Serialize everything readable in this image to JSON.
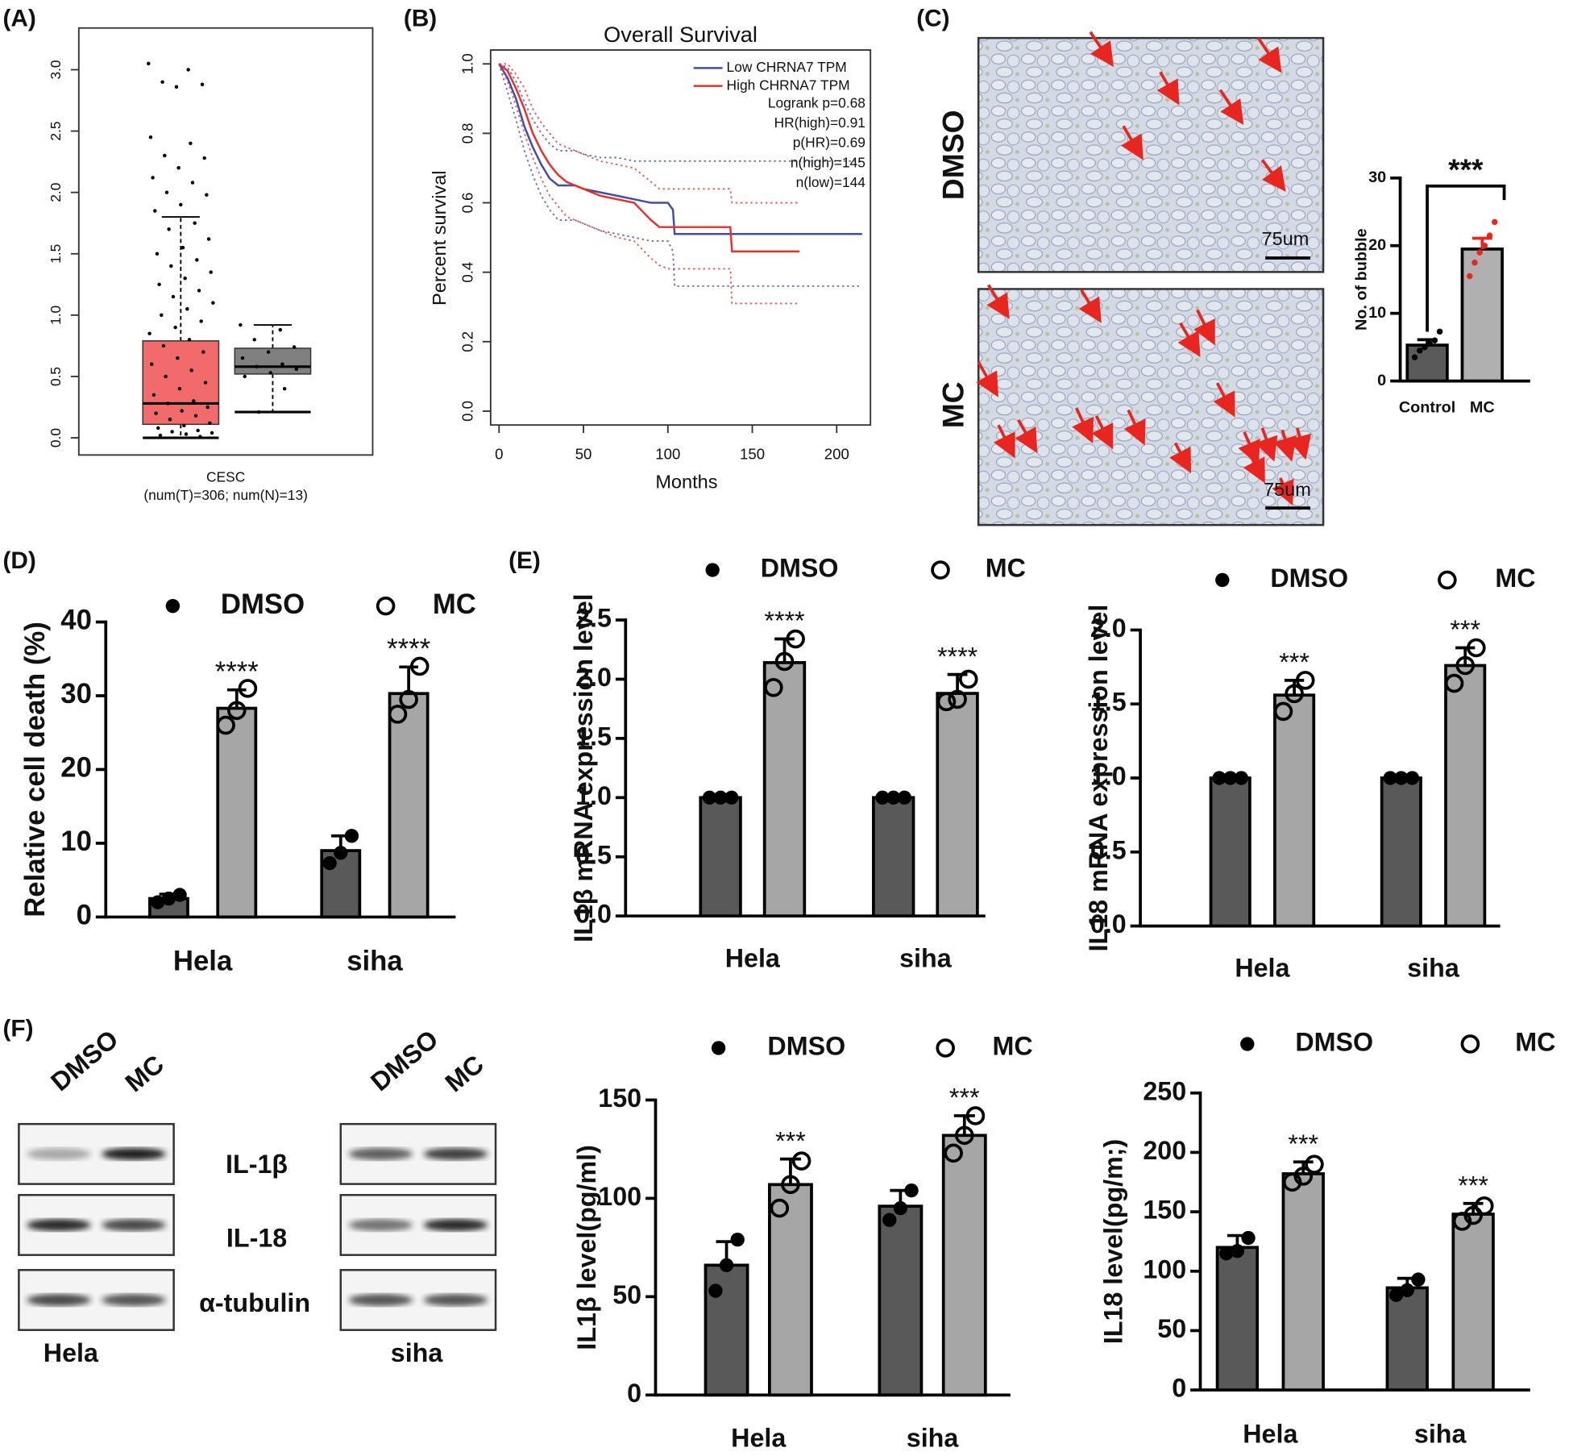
{
  "panels": [
    "(A)",
    "(B)",
    "(C)",
    "(D)",
    "(E)",
    "(F)"
  ],
  "micrographs": {
    "conditions": [
      "DMSO",
      "MC"
    ],
    "scale_bars": [
      "75um",
      "75um"
    ]
  },
  "blot": {
    "lanes": [
      "DMSO",
      "MC",
      "DMSO",
      "MC"
    ],
    "proteins": [
      "IL-1β",
      "IL-18",
      "α-tubulin"
    ],
    "cell_lines": [
      "Hela",
      "siha"
    ]
  },
  "chart_data": [
    {
      "type": "box",
      "categories": [
        "CESC"
      ],
      "category_note": "(num(T)=306; num(N)=13)",
      "ylim": [
        -0.14,
        3.34
      ],
      "yticks": [
        {
          "value": 0,
          "label": "0.0"
        },
        0.5,
        {
          "value": 1,
          "label": "1.0"
        },
        1.5,
        {
          "value": 2,
          "label": "2.0"
        },
        2.5,
        {
          "value": 3,
          "label": "3.0"
        }
      ],
      "boxes": [
        {
          "color": "#f26b6b",
          "min": 0,
          "q1": 0.11,
          "median": 0.28,
          "q3": 0.79,
          "max": 1.8,
          "points": [
            3.05,
            3.0,
            2.9,
            2.88,
            2.86,
            2.45,
            2.4,
            2.3,
            2.28,
            2.2,
            2.12,
            2.08,
            2.0,
            1.98,
            1.9,
            1.85,
            1.75,
            1.7,
            1.62,
            1.55,
            1.5,
            1.45,
            1.4,
            1.35,
            1.3,
            1.25,
            1.2,
            1.15,
            1.1,
            1.05,
            1.0,
            0.95,
            0.9,
            0.85,
            0.8,
            0.75,
            0.7,
            0.65,
            0.6,
            0.55,
            0.5,
            0.45,
            0.4,
            0.35,
            0.3,
            0.28,
            0.25,
            0.22,
            0.2,
            0.18,
            0.15,
            0.12,
            0.1,
            0.08,
            0.06,
            0.05,
            0.04,
            0.03,
            0.02,
            0.01
          ]
        },
        {
          "color": "#808080",
          "min": 0.21,
          "q1": 0.52,
          "median": 0.58,
          "q3": 0.73,
          "max": 0.92,
          "points": [
            0.92,
            0.88,
            0.8,
            0.74,
            0.7,
            0.65,
            0.6,
            0.58,
            0.56,
            0.53,
            0.5,
            0.4,
            0.21
          ]
        }
      ]
    },
    {
      "type": "line",
      "title": "Overall Survival",
      "xlabel": "Months",
      "ylabel": "Percent survival",
      "xlim": [
        -5,
        220
      ],
      "xticks": [
        0,
        50,
        100,
        150,
        200
      ],
      "ylim": [
        -0.04,
        1.04
      ],
      "yticks": [
        {
          "value": 0,
          "label": "0.0"
        },
        0.2,
        0.4,
        0.6,
        0.8,
        {
          "value": 1,
          "label": "1.0"
        }
      ],
      "stats": [
        "Logrank p=0.68",
        "HR(high)=0.91",
        "p(HR)=0.69",
        "n(high)=145",
        "n(low)=144"
      ],
      "series": [
        {
          "name": "Low CHRNA7 TPM",
          "color": "#3f4fa8",
          "x": [
            0,
            5,
            10,
            15,
            20,
            25,
            30,
            35,
            40,
            45,
            50,
            60,
            70,
            80,
            90,
            100,
            103,
            104,
            215
          ],
          "values": [
            1.0,
            0.96,
            0.9,
            0.82,
            0.76,
            0.71,
            0.67,
            0.65,
            0.65,
            0.65,
            0.64,
            0.63,
            0.62,
            0.61,
            0.6,
            0.6,
            0.58,
            0.51,
            0.51
          ],
          "upper": [
            1.0,
            0.99,
            0.95,
            0.89,
            0.84,
            0.8,
            0.77,
            0.75,
            0.75,
            0.75,
            0.74,
            0.73,
            0.73,
            0.72,
            0.72,
            0.72,
            0.72,
            0.72,
            0.72
          ],
          "lower": [
            1.0,
            0.92,
            0.84,
            0.75,
            0.68,
            0.62,
            0.58,
            0.55,
            0.55,
            0.55,
            0.54,
            0.52,
            0.51,
            0.5,
            0.49,
            0.49,
            0.46,
            0.36,
            0.36
          ]
        },
        {
          "name": "High CHRNA7 TPM",
          "color": "#e8312a",
          "x": [
            0,
            5,
            10,
            15,
            20,
            25,
            30,
            35,
            40,
            45,
            50,
            60,
            70,
            80,
            90,
            95,
            100,
            137,
            138,
            178
          ],
          "values": [
            1.0,
            0.98,
            0.93,
            0.87,
            0.8,
            0.75,
            0.71,
            0.68,
            0.66,
            0.65,
            0.64,
            0.62,
            0.61,
            0.6,
            0.55,
            0.53,
            0.53,
            0.53,
            0.46,
            0.46
          ],
          "upper": [
            1.0,
            1.0,
            0.97,
            0.93,
            0.87,
            0.83,
            0.8,
            0.77,
            0.76,
            0.75,
            0.74,
            0.72,
            0.71,
            0.7,
            0.66,
            0.64,
            0.64,
            0.64,
            0.6,
            0.6
          ],
          "lower": [
            1.0,
            0.95,
            0.88,
            0.8,
            0.73,
            0.67,
            0.62,
            0.59,
            0.56,
            0.55,
            0.54,
            0.52,
            0.5,
            0.49,
            0.44,
            0.42,
            0.41,
            0.41,
            0.31,
            0.31
          ]
        }
      ]
    },
    {
      "type": "bar",
      "ylabel": "No. of bubble",
      "categories": [
        "Control",
        "MC"
      ],
      "values": [
        5.3,
        19.5
      ],
      "errors": [
        0.8,
        1.6
      ],
      "colors": [
        "#5a5a5a",
        "#b0b0b0"
      ],
      "point_colors": [
        "#000000",
        "#e8261f"
      ],
      "points": [
        [
          3.5,
          4.5,
          5,
          5.5,
          6,
          7.3
        ],
        [
          15.5,
          17.5,
          19,
          20,
          21.5,
          23.5
        ]
      ],
      "ylim": [
        0,
        30
      ],
      "yticks": [
        0,
        10,
        20,
        30
      ],
      "significance": "***"
    },
    {
      "type": "bar",
      "ylabel": "Relative cell death (%)",
      "categories": [
        "Hela",
        "siha"
      ],
      "ylim": [
        0,
        40
      ],
      "yticks": [
        0,
        10,
        20,
        30,
        40
      ],
      "series": [
        {
          "name": "DMSO",
          "color": "#595959",
          "marker": "filled",
          "values": [
            2.5,
            9
          ],
          "errors": [
            0.6,
            2
          ],
          "points": [
            [
              2,
              2.5,
              3
            ],
            [
              7.3,
              8.7,
              11
            ]
          ]
        },
        {
          "name": "MC",
          "color": "#a6a6a6",
          "marker": "open",
          "values": [
            28.3,
            30.3
          ],
          "errors": [
            2.5,
            3.6
          ],
          "points": [
            [
              26,
              28,
              31
            ],
            [
              27.5,
              29.5,
              34
            ]
          ],
          "significance": [
            "****",
            "****"
          ]
        }
      ]
    },
    {
      "type": "bar",
      "ylabel": "IL1β mRNA expression level",
      "categories": [
        "Hela",
        "siha"
      ],
      "ylim": [
        0,
        2.5
      ],
      "yticks": [
        {
          "value": 0,
          "label": "0.0"
        },
        0.5,
        {
          "value": 1,
          "label": "1.0"
        },
        1.5,
        {
          "value": 2,
          "label": "2.0"
        },
        2.5
      ],
      "series": [
        {
          "name": "DMSO",
          "color": "#595959",
          "marker": "filled",
          "values": [
            1,
            1
          ],
          "errors": [
            0,
            0
          ],
          "points": [
            [
              1,
              1,
              1
            ],
            [
              1,
              1,
              1
            ]
          ]
        },
        {
          "name": "MC",
          "color": "#a6a6a6",
          "marker": "open",
          "values": [
            2.14,
            1.88
          ],
          "errors": [
            0.2,
            0.16
          ],
          "points": [
            [
              1.93,
              2.15,
              2.34
            ],
            [
              1.81,
              1.83,
              2.0
            ]
          ],
          "significance": [
            "****",
            "****"
          ]
        }
      ]
    },
    {
      "type": "bar",
      "ylabel": "IL18 mRNA expression level",
      "categories": [
        "Hela",
        "siha"
      ],
      "ylim": [
        0,
        2
      ],
      "yticks": [
        {
          "value": 0,
          "label": "0.0"
        },
        0.5,
        {
          "value": 1,
          "label": "1.0"
        },
        1.5,
        {
          "value": 2,
          "label": "2.0"
        }
      ],
      "series": [
        {
          "name": "DMSO",
          "color": "#595959",
          "marker": "filled",
          "values": [
            1,
            1
          ],
          "errors": [
            0,
            0
          ],
          "points": [
            [
              1,
              1,
              1
            ],
            [
              1,
              1,
              1
            ]
          ]
        },
        {
          "name": "MC",
          "color": "#a6a6a6",
          "marker": "open",
          "values": [
            1.56,
            1.76
          ],
          "errors": [
            0.1,
            0.12
          ],
          "points": [
            [
              1.45,
              1.57,
              1.66
            ],
            [
              1.64,
              1.76,
              1.88
            ]
          ],
          "significance": [
            "***",
            "***"
          ]
        }
      ]
    },
    {
      "type": "bar",
      "ylabel": "IL1β level(pg/ml)",
      "categories": [
        "Hela",
        "siha"
      ],
      "ylim": [
        0,
        150
      ],
      "yticks": [
        0,
        50,
        100,
        150
      ],
      "series": [
        {
          "name": "DMSO",
          "color": "#595959",
          "marker": "filled",
          "values": [
            66,
            96
          ],
          "errors": [
            12,
            8
          ],
          "points": [
            [
              53,
              66,
              79
            ],
            [
              89,
              95,
              104
            ]
          ]
        },
        {
          "name": "MC",
          "color": "#a6a6a6",
          "marker": "open",
          "values": [
            107,
            132
          ],
          "errors": [
            13,
            10
          ],
          "points": [
            [
              95,
              107,
              119
            ],
            [
              123,
              132,
              142
            ]
          ],
          "significance": [
            "***",
            "***"
          ]
        }
      ]
    },
    {
      "type": "bar",
      "ylabel": "IL18 level(pg/m;)",
      "categories": [
        "Hela",
        "siha"
      ],
      "ylim": [
        0,
        250
      ],
      "yticks": [
        0,
        50,
        100,
        150,
        200,
        250
      ],
      "series": [
        {
          "name": "DMSO",
          "color": "#595959",
          "marker": "filled",
          "values": [
            120,
            86
          ],
          "errors": [
            10,
            8
          ],
          "points": [
            [
              115,
              117,
              128
            ],
            [
              80,
              84,
              93
            ]
          ]
        },
        {
          "name": "MC",
          "color": "#a6a6a6",
          "marker": "open",
          "values": [
            182,
            148
          ],
          "errors": [
            10,
            9
          ],
          "points": [
            [
              175,
              180,
              190
            ],
            [
              142,
              147,
              155
            ]
          ],
          "significance": [
            "***",
            "***"
          ]
        }
      ]
    }
  ]
}
